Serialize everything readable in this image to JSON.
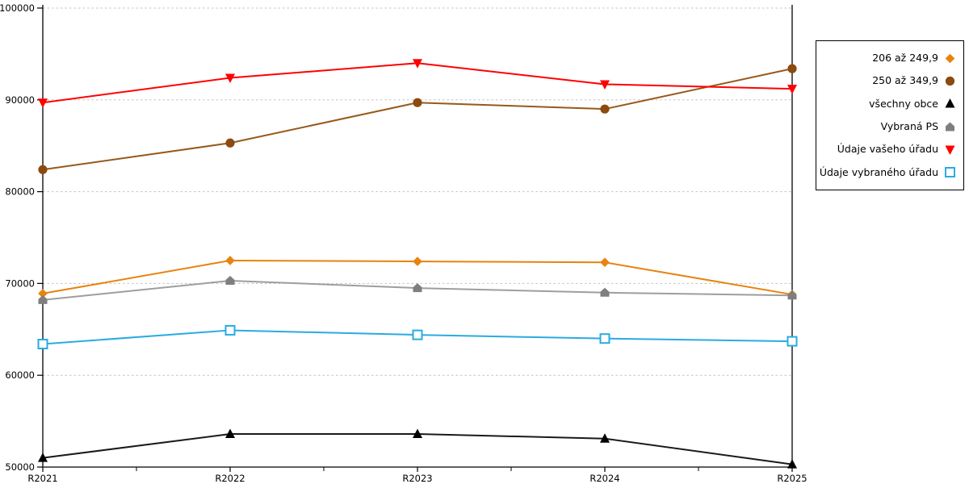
{
  "chart_data": {
    "type": "line",
    "title": "",
    "xlabel": "",
    "ylabel": "",
    "categories": [
      "R2021",
      "R2022",
      "R2023",
      "R2024",
      "R2025"
    ],
    "ylim": [
      50000,
      100000
    ],
    "y_ticks": [
      50000,
      60000,
      70000,
      80000,
      90000,
      100000
    ],
    "grid": "horizontal-dashed",
    "grid_color": "#c3c3c3",
    "axis_color": "#000000",
    "legend_position": "right-outside",
    "series": [
      {
        "name": "206 až 249,9",
        "marker": "diamond",
        "color": "#e8830d",
        "marker_color": "#e8830d",
        "values": [
          68900,
          72500,
          72400,
          72300,
          68800
        ]
      },
      {
        "name": "250 až 349,9",
        "marker": "circle",
        "color": "#97591b",
        "marker_color": "#8b4a10",
        "values": [
          82400,
          85300,
          89700,
          89000,
          93400
        ]
      },
      {
        "name": "všechny obce",
        "marker": "triangle-up",
        "color": "#1a1a1a",
        "marker_color": "#000000",
        "values": [
          51000,
          53600,
          53600,
          53100,
          50300
        ]
      },
      {
        "name": "Vybraná PS",
        "marker": "pentagon-up",
        "color": "#9e9e9e",
        "marker_color": "#7f7f7f",
        "values": [
          68200,
          70300,
          69500,
          69000,
          68700
        ]
      },
      {
        "name": "Údaje vašeho úřadu",
        "marker": "triangle-down",
        "color": "#ff0000",
        "marker_color": "#ff0000",
        "values": [
          89700,
          92400,
          94000,
          91700,
          91200
        ]
      },
      {
        "name": "Údaje vybraného úřadu",
        "marker": "open-square",
        "color": "#29abe2",
        "marker_color": "#29abe2",
        "values": [
          63400,
          64900,
          64400,
          64000,
          63700
        ]
      }
    ]
  },
  "legend": {
    "items": [
      "206 až 249,9",
      "250 až 349,9",
      "všechny obce",
      "Vybraná PS",
      "Údaje vašeho úřadu",
      "Údaje vybraného úřadu"
    ]
  }
}
